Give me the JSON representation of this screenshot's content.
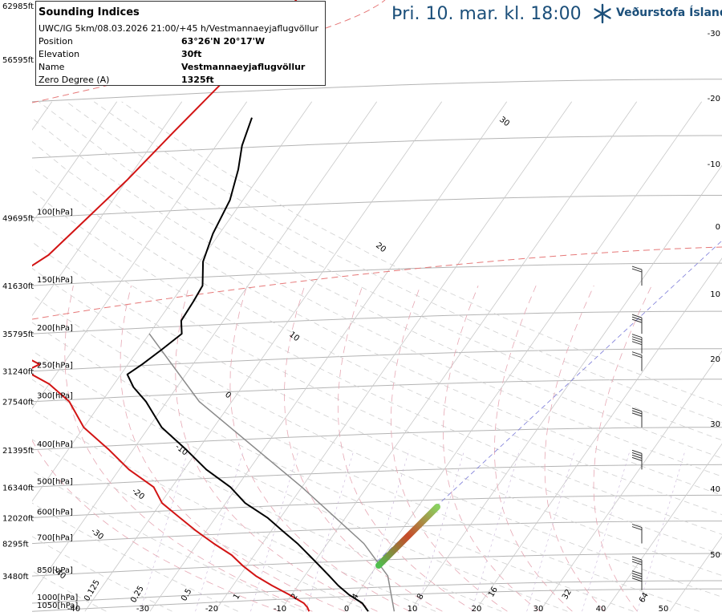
{
  "header": {
    "title": "Þri. 10. mar. kl. 18:00",
    "logo_text": "Veðurstofa Íslands",
    "logo_icon": "snowflake-icon"
  },
  "info": {
    "title": "Sounding Indices",
    "subtitle": "UWC/IG 5km/08.03.2026 21:00/+45 h/Vestmannaeyjaflugvöllur",
    "rows": [
      {
        "label": "Position",
        "value": "63°26'N 20°17'W"
      },
      {
        "label": "Elevation",
        "value": "30ft"
      },
      {
        "label": "Name",
        "value": "Vestmannaeyjaflugvöllur"
      },
      {
        "label": "Zero Degree (A)",
        "value": "1325ft"
      }
    ]
  },
  "chart_data": {
    "type": "line",
    "levels": [
      {
        "pressure": "100[hPa]",
        "altitude": "49695ft"
      },
      {
        "pressure": "150[hPa]",
        "altitude": "41630ft"
      },
      {
        "pressure": "200[hPa]",
        "altitude": "35795ft"
      },
      {
        "pressure": "250[hPa]",
        "altitude": "31240ft"
      },
      {
        "pressure": "300[hPa]",
        "altitude": "27540ft"
      },
      {
        "pressure": "400[hPa]",
        "altitude": "21395ft"
      },
      {
        "pressure": "500[hPa]",
        "altitude": "16340ft"
      },
      {
        "pressure": "600[hPa]",
        "altitude": "12020ft"
      },
      {
        "pressure": "700[hPa]",
        "altitude": "8295ft"
      },
      {
        "pressure": "850[hPa]",
        "altitude": "3480ft"
      },
      {
        "pressure": "1000[hPa]",
        "altitude": ""
      },
      {
        "pressure": "1050[hPa]",
        "altitude": ""
      }
    ],
    "top_altitudes": [
      "62985ft",
      "56595ft"
    ],
    "right_ticks": [
      "-30",
      "-20",
      "-10",
      "0",
      "10",
      "20",
      "30",
      "40",
      "50"
    ],
    "bottom_ticks": [
      "-40",
      "-30",
      "-20",
      "-10",
      "0",
      "10",
      "20",
      "30",
      "40",
      "50"
    ],
    "mixing_ratio_ticks": [
      "0.125",
      "0.25",
      "0.5",
      "1",
      "2",
      "4",
      "8",
      "16",
      "32",
      "64"
    ],
    "isotherm_labels": [
      "30",
      "20",
      "10",
      "0",
      "-10",
      "-20",
      "-30",
      "-40"
    ],
    "series": [
      {
        "color": "#000000",
        "points": [
          [
            1050,
            3.6
          ],
          [
            1000,
            1.8
          ],
          [
            950,
            -1.2
          ],
          [
            900,
            -3.8
          ],
          [
            850,
            -6.2
          ],
          [
            800,
            -8.8
          ],
          [
            750,
            -11.6
          ],
          [
            700,
            -14.6
          ],
          [
            650,
            -18.2
          ],
          [
            600,
            -22
          ],
          [
            550,
            -27
          ],
          [
            500,
            -31
          ],
          [
            450,
            -36.6
          ],
          [
            400,
            -41.8
          ],
          [
            350,
            -48
          ],
          [
            300,
            -53.2
          ],
          [
            275,
            -56.7
          ],
          [
            255,
            -59
          ],
          [
            240,
            -57.8
          ],
          [
            220,
            -56.4
          ],
          [
            200,
            -55
          ],
          [
            185,
            -56.5
          ],
          [
            165,
            -56.7
          ],
          [
            150,
            -57
          ],
          [
            130,
            -59.5
          ],
          [
            110,
            -61
          ],
          [
            90,
            -62
          ],
          [
            75,
            -64
          ],
          [
            65,
            -66
          ],
          [
            55,
            -67.5
          ]
        ]
      },
      {
        "color": "#d21414",
        "points": [
          [
            1050,
            -5.5
          ],
          [
            1025,
            -6.2
          ],
          [
            1000,
            -7.2
          ],
          [
            950,
            -10.4
          ],
          [
            900,
            -14
          ],
          [
            850,
            -17.5
          ],
          [
            800,
            -20.6
          ],
          [
            750,
            -23.5
          ],
          [
            700,
            -27.5
          ],
          [
            650,
            -31.5
          ],
          [
            600,
            -35.5
          ],
          [
            550,
            -39.8
          ],
          [
            500,
            -42.8
          ],
          [
            450,
            -48.5
          ],
          [
            400,
            -53.7
          ],
          [
            350,
            -60
          ],
          [
            300,
            -65
          ],
          [
            270,
            -70
          ],
          [
            250,
            -75
          ],
          [
            240,
            -73.6
          ],
          [
            225,
            -78
          ],
          [
            200,
            -82
          ],
          [
            150,
            -88
          ],
          [
            125,
            -84
          ],
          [
            100,
            -82
          ],
          [
            80,
            -80
          ],
          [
            60,
            -78
          ],
          [
            40,
            -75
          ],
          [
            25,
            -73
          ]
        ]
      }
    ],
    "parcel_curve": [
      [
        1050,
        7.6
      ],
      [
        850,
        2.8
      ],
      [
        700,
        -4.4
      ],
      [
        500,
        -20
      ],
      [
        300,
        -45
      ],
      [
        200,
        -60
      ]
    ],
    "winds": [
      "150",
      "200",
      "225",
      "250",
      "350",
      "450",
      "700",
      "850",
      "925"
    ],
    "grid": true,
    "legend": "none"
  }
}
